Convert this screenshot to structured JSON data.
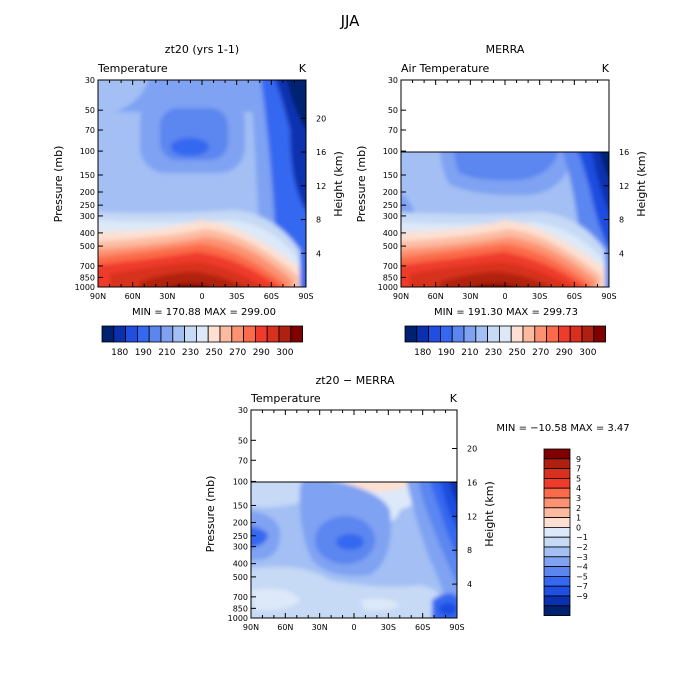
{
  "suptitle": "JJA",
  "colors": {
    "warm": [
      "#fde0d2",
      "#fcbba1",
      "#fc9272",
      "#fb6a4a",
      "#ef3b2c",
      "#d7301f",
      "#b02010",
      "#7f0000"
    ],
    "cool": [
      "#002070",
      "#0a30b0",
      "#1f4ee0",
      "#3568f0",
      "#5b86f0",
      "#7fa2f2",
      "#a3bff4",
      "#c6d9f5",
      "#dde9f8"
    ]
  },
  "chart_data": [
    {
      "type": "contour",
      "title": "zt20 (yrs 1-1)",
      "subtitle_left": "Temperature",
      "unit": "K",
      "xlabel": "",
      "ylabel": "Pressure (mb)",
      "ylabel_right": "Height (km)",
      "x_ticks": [
        "90N",
        "60N",
        "30N",
        "0",
        "30S",
        "60S",
        "90S"
      ],
      "y_ticks": [
        "30",
        "50",
        "70",
        "100",
        "150",
        "200",
        "250",
        "300",
        "400",
        "500",
        "700",
        "850",
        "1000"
      ],
      "height_ticks": [
        "4",
        "8",
        "12",
        "16",
        "20"
      ],
      "stats": "MIN = 170.88   MAX = 299.00",
      "colorbar_labels": [
        "180",
        "190",
        "210",
        "230",
        "250",
        "270",
        "290",
        "300"
      ],
      "min": 170.88,
      "max": 299.0
    },
    {
      "type": "contour",
      "title": "MERRA",
      "subtitle_left": "Air Temperature",
      "unit": "K",
      "xlabel": "",
      "ylabel": "Pressure (mb)",
      "ylabel_right": "Height (km)",
      "x_ticks": [
        "90N",
        "60N",
        "30N",
        "0",
        "30S",
        "60S",
        "90S"
      ],
      "y_ticks": [
        "30",
        "50",
        "70",
        "100",
        "150",
        "200",
        "250",
        "300",
        "400",
        "500",
        "700",
        "850",
        "1000"
      ],
      "height_ticks": [
        "4",
        "8",
        "12",
        "16"
      ],
      "stats": "MIN = 191.30   MAX = 299.73",
      "colorbar_labels": [
        "180",
        "190",
        "210",
        "230",
        "250",
        "270",
        "290",
        "300"
      ],
      "min": 191.3,
      "max": 299.73,
      "data_top_pressure": 100
    },
    {
      "type": "contour",
      "title": "zt20 − MERRA",
      "subtitle_left": "Temperature",
      "unit": "K",
      "xlabel": "",
      "ylabel": "Pressure (mb)",
      "ylabel_right": "Height (km)",
      "x_ticks": [
        "90N",
        "60N",
        "30N",
        "0",
        "30S",
        "60S",
        "90S"
      ],
      "y_ticks": [
        "30",
        "50",
        "70",
        "100",
        "150",
        "200",
        "250",
        "300",
        "400",
        "500",
        "700",
        "850",
        "1000"
      ],
      "height_ticks": [
        "4",
        "8",
        "12",
        "16",
        "20"
      ],
      "stats": "MIN = −10.58   MAX =     3.47",
      "colorbar_labels": [
        "9",
        "7",
        "5",
        "4",
        "3",
        "2",
        "1",
        "0",
        "−1",
        "−2",
        "−3",
        "−4",
        "−5",
        "−7",
        "−9"
      ],
      "min": -10.58,
      "max": 3.47,
      "data_top_pressure": 100
    }
  ]
}
